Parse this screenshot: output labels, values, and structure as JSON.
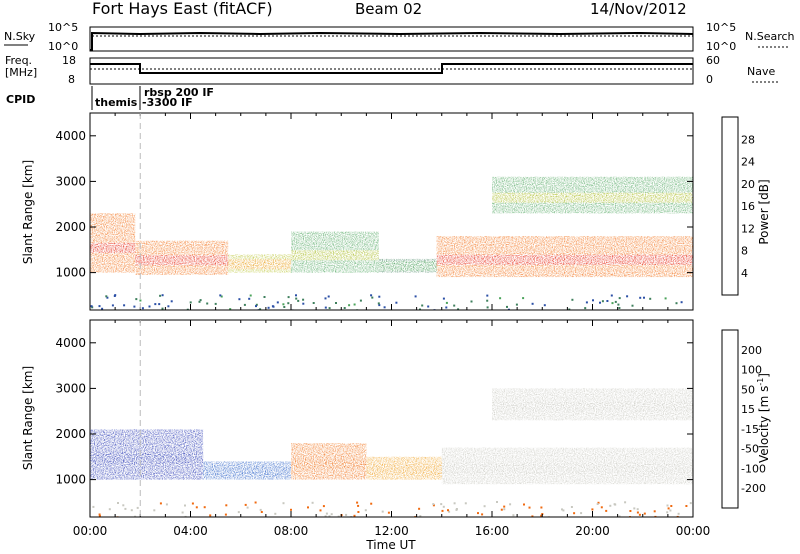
{
  "header": {
    "site": "Fort Hays East (fitACF)",
    "beam": "Beam 02",
    "date": "14/Nov/2012"
  },
  "noise_panel": {
    "left_label": "N.Sky",
    "right_label": "N.Search",
    "left_ticks": [
      "10^5",
      "10^0"
    ],
    "right_ticks": [
      "10^5",
      "10^0"
    ]
  },
  "freq_panel": {
    "left_label_1": "Freq.",
    "left_label_2": "[MHz]",
    "right_label": "Nave",
    "left_ticks": [
      "18",
      "8"
    ],
    "right_ticks": [
      "60",
      "0"
    ]
  },
  "cpid": {
    "label": "CPID",
    "entries": [
      "themis",
      "rbsp 200 IF",
      "-3300 IF"
    ]
  },
  "axes": {
    "ylabel": "Slant Range [km]",
    "xlabel": "Time UT",
    "y_ticks": [
      "1000",
      "2000",
      "3000",
      "4000"
    ],
    "x_ticks": [
      "00:00",
      "04:00",
      "08:00",
      "12:00",
      "16:00",
      "20:00",
      "00:00"
    ]
  },
  "colorbars": {
    "power": {
      "title": "Power [dB]",
      "ticks": [
        "4",
        "8",
        "12",
        "16",
        "20",
        "24",
        "28"
      ],
      "colors": [
        "#0000ff",
        "#2b4fa6",
        "#3e7f5c",
        "#4aa35a",
        "#b7c22c",
        "#f0a020",
        "#f26a10",
        "#e8281c"
      ]
    },
    "velocity": {
      "title": "Velocity [m s",
      "title_sup": "-1",
      "title_end": "]",
      "ticks": [
        "200",
        "100",
        "50",
        "15",
        "-15",
        "-50",
        "-100",
        "-200"
      ],
      "colors": [
        "#1e2fb0",
        "#2a60c8",
        "#2f9a3a",
        "#7dc84a",
        "#c8c8c0",
        "#f0a020",
        "#f06a10",
        "#e82020",
        "#e80000"
      ]
    }
  },
  "chart_data": [
    {
      "type": "heatmap",
      "title": "",
      "xlabel": "Time UT",
      "ylabel": "Slant Range [km]",
      "xlim": [
        0,
        24
      ],
      "ylim": [
        180,
        4500
      ],
      "colorbar": "Power [dB]",
      "colorbar_range": [
        0,
        30
      ],
      "segments": [
        {
          "t": [
            0.0,
            1.8
          ],
          "range": [
            1000,
            2300
          ],
          "level": 24
        },
        {
          "t": [
            1.8,
            5.5
          ],
          "range": [
            950,
            1700
          ],
          "level": 26
        },
        {
          "t": [
            5.5,
            8.0
          ],
          "range": [
            1000,
            1400
          ],
          "level": 16
        },
        {
          "t": [
            8.0,
            11.5
          ],
          "range": [
            1000,
            1900
          ],
          "level": 14
        },
        {
          "t": [
            11.5,
            13.8
          ],
          "range": [
            1000,
            1300
          ],
          "level": 10
        },
        {
          "t": [
            13.8,
            24.0
          ],
          "range": [
            900,
            1800
          ],
          "level": 24
        },
        {
          "t": [
            16.0,
            24.0
          ],
          "range": [
            2300,
            3100
          ],
          "level": 12
        }
      ]
    },
    {
      "type": "heatmap",
      "title": "",
      "xlabel": "Time UT",
      "ylabel": "Slant Range [km]",
      "xlim": [
        0,
        24
      ],
      "ylim": [
        180,
        4500
      ],
      "colorbar": "Velocity [m s-1]",
      "colorbar_range": [
        -250,
        250
      ],
      "segments": [
        {
          "t": [
            0.0,
            4.5
          ],
          "range": [
            1000,
            2100
          ],
          "velocity": 150
        },
        {
          "t": [
            4.5,
            8.0
          ],
          "range": [
            1000,
            1400
          ],
          "velocity": 100
        },
        {
          "t": [
            8.0,
            11.0
          ],
          "range": [
            1000,
            1800
          ],
          "velocity": -60
        },
        {
          "t": [
            11.0,
            14.0
          ],
          "range": [
            1000,
            1500
          ],
          "velocity": -40
        },
        {
          "t": [
            14.0,
            24.0
          ],
          "range": [
            900,
            1700
          ],
          "velocity": 0
        },
        {
          "t": [
            16.0,
            24.0
          ],
          "range": [
            2300,
            3000
          ],
          "velocity": 0
        }
      ]
    }
  ]
}
